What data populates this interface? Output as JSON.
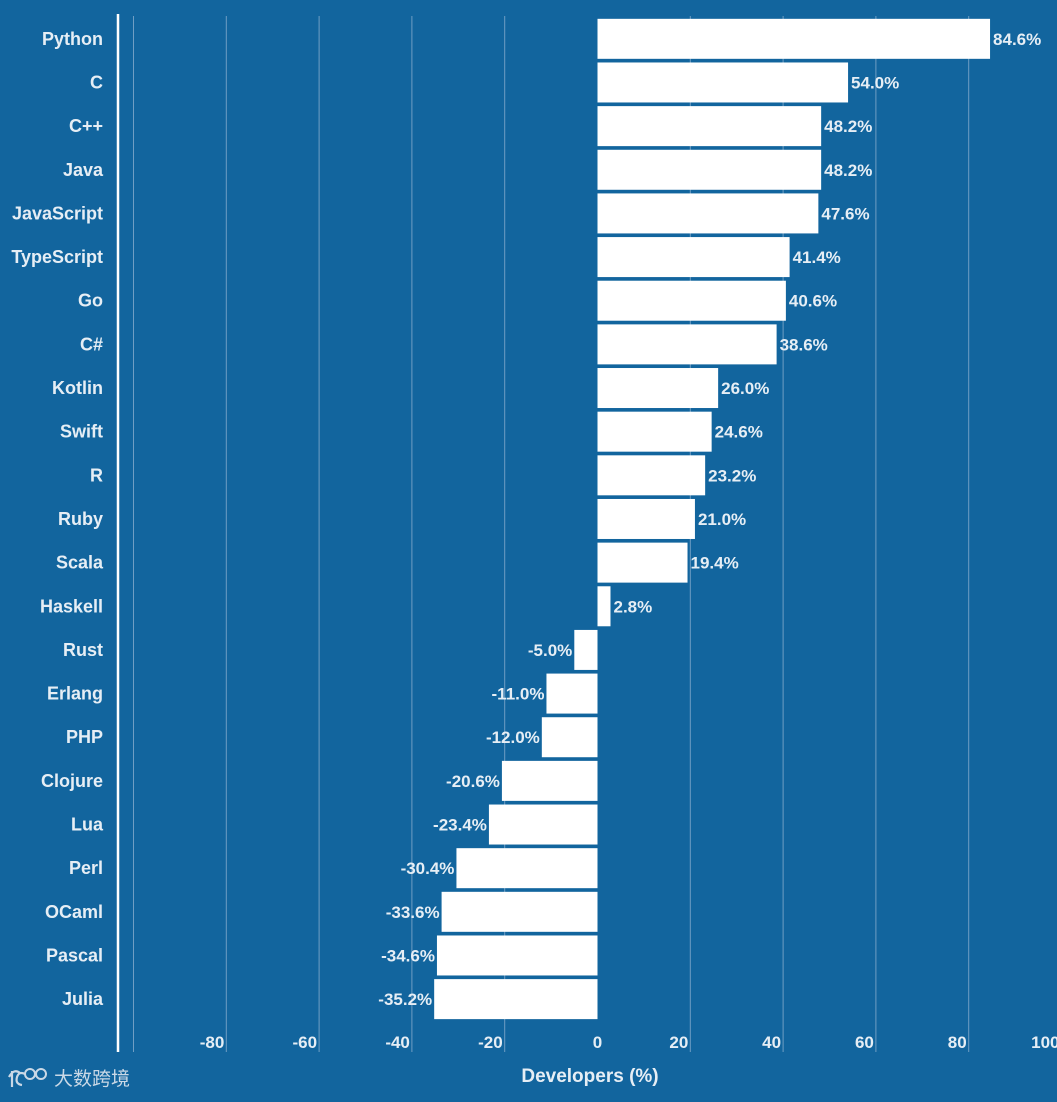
{
  "chart_data": {
    "type": "bar",
    "orientation": "horizontal",
    "categories": [
      "Python",
      "C",
      "C++",
      "Java",
      "JavaScript",
      "TypeScript",
      "Go",
      "C#",
      "Kotlin",
      "Swift",
      "R",
      "Ruby",
      "Scala",
      "Haskell",
      "Rust",
      "Erlang",
      "PHP",
      "Clojure",
      "Lua",
      "Perl",
      "OCaml",
      "Pascal",
      "Julia"
    ],
    "values": [
      84.6,
      54.0,
      48.2,
      48.2,
      47.6,
      41.4,
      40.6,
      38.6,
      26.0,
      24.6,
      23.2,
      21.0,
      19.4,
      2.8,
      -5.0,
      -11.0,
      -12.0,
      -20.6,
      -23.4,
      -30.4,
      -33.6,
      -34.6,
      -35.2
    ],
    "value_labels": [
      "84.6%",
      "54.0%",
      "48.2%",
      "48.2%",
      "47.6%",
      "41.4%",
      "40.6%",
      "38.6%",
      "26.0%",
      "24.6%",
      "23.2%",
      "21.0%",
      "19.4%",
      "2.8%",
      "-5.0%",
      "-11.0%",
      "-12.0%",
      "-20.6%",
      "-23.4%",
      "-30.4%",
      "-33.6%",
      "-34.6%",
      "-35.2%"
    ],
    "xlabel": "Developers (%)",
    "ylabel": "",
    "xlim": [
      -100,
      100
    ],
    "xticks": [
      -80,
      -60,
      -40,
      -20,
      0,
      20,
      40,
      60,
      80,
      100
    ],
    "xtick_labels": [
      "-80",
      "-60",
      "-40",
      "-20",
      "0",
      "20",
      "40",
      "60",
      "80",
      "100"
    ],
    "grid": true,
    "colors": {
      "background": "#12659e",
      "bar": "#ffffff",
      "text": "#e6eef5",
      "grid": "#6f9ec4"
    }
  },
  "watermark": {
    "text": "大数跨境"
  }
}
